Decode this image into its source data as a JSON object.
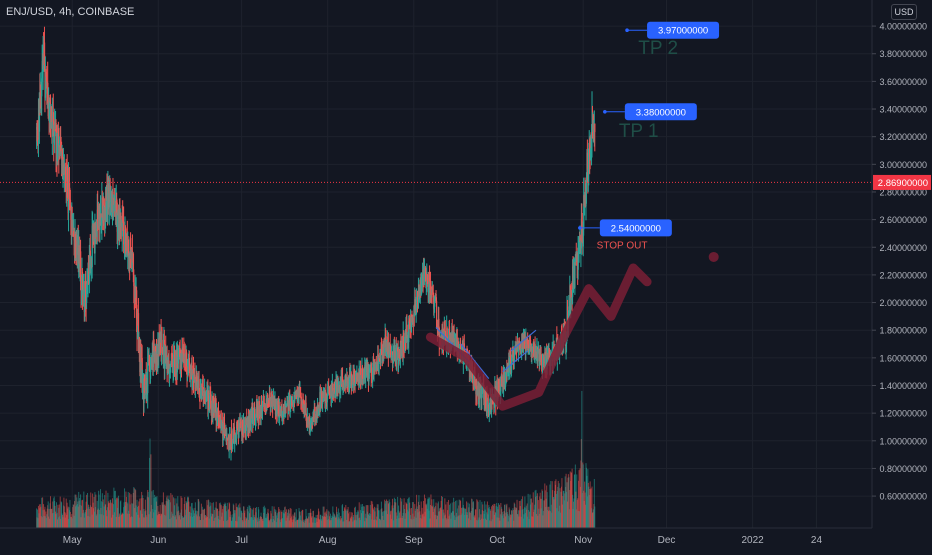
{
  "header": {
    "symbol_line": "ENJ/USD, 4h, COINBASE",
    "currency": "USD"
  },
  "chart_data": {
    "type": "candlestick",
    "title": "ENJ/USD, 4h, COINBASE",
    "ylim": [
      0.48,
      4.1
    ],
    "y_ticks": [
      "4.00000000",
      "3.80000000",
      "3.60000000",
      "3.40000000",
      "3.20000000",
      "3.00000000",
      "2.80000000",
      "2.60000000",
      "2.40000000",
      "2.20000000",
      "2.00000000",
      "1.80000000",
      "1.60000000",
      "1.40000000",
      "1.20000000",
      "1.00000000",
      "0.80000000",
      "0.60000000"
    ],
    "y_tick_values": [
      4.0,
      3.8,
      3.6,
      3.4,
      3.2,
      3.0,
      2.8,
      2.6,
      2.4,
      2.2,
      2.0,
      1.8,
      1.6,
      1.4,
      1.2,
      1.0,
      0.8,
      0.6
    ],
    "x_labels": [
      "May",
      "Jun",
      "Jul",
      "Aug",
      "Sep",
      "Oct",
      "Nov",
      "Dec",
      "2022",
      "24"
    ],
    "x_label_dates": [
      "2021-05-01",
      "2021-06-01",
      "2021-07-01",
      "2021-08-01",
      "2021-09-01",
      "2021-10-01",
      "2021-11-01",
      "2021-12-01",
      "2022-01-01",
      "2022-01-24"
    ],
    "x_range": [
      "2021-04-05",
      "2022-02-13"
    ],
    "last_price": {
      "label": "2.86900000",
      "value": 2.869
    },
    "price_path": [
      [
        "2021-04-18",
        3.25
      ],
      [
        "2021-04-20",
        3.8
      ],
      [
        "2021-04-22",
        3.4
      ],
      [
        "2021-04-27",
        3.0
      ],
      [
        "2021-05-01",
        2.5
      ],
      [
        "2021-05-05",
        2.05
      ],
      [
        "2021-05-09",
        2.6
      ],
      [
        "2021-05-14",
        2.78
      ],
      [
        "2021-05-18",
        2.55
      ],
      [
        "2021-05-22",
        2.3
      ],
      [
        "2021-05-26",
        1.35
      ],
      [
        "2021-05-29",
        1.55
      ],
      [
        "2021-06-01",
        1.7
      ],
      [
        "2021-06-04",
        1.55
      ],
      [
        "2021-06-09",
        1.6
      ],
      [
        "2021-06-14",
        1.4
      ],
      [
        "2021-06-20",
        1.25
      ],
      [
        "2021-06-26",
        1.0
      ],
      [
        "2021-07-01",
        1.1
      ],
      [
        "2021-07-05",
        1.2
      ],
      [
        "2021-07-10",
        1.3
      ],
      [
        "2021-07-15",
        1.2
      ],
      [
        "2021-07-21",
        1.35
      ],
      [
        "2021-07-25",
        1.1
      ],
      [
        "2021-07-29",
        1.3
      ],
      [
        "2021-08-04",
        1.4
      ],
      [
        "2021-08-10",
        1.45
      ],
      [
        "2021-08-16",
        1.5
      ],
      [
        "2021-08-21",
        1.7
      ],
      [
        "2021-08-26",
        1.6
      ],
      [
        "2021-08-31",
        1.9
      ],
      [
        "2021-09-04",
        2.2
      ],
      [
        "2021-09-07",
        2.1
      ],
      [
        "2021-09-10",
        1.75
      ],
      [
        "2021-09-14",
        1.75
      ],
      [
        "2021-09-19",
        1.6
      ],
      [
        "2021-09-23",
        1.4
      ],
      [
        "2021-09-28",
        1.25
      ],
      [
        "2021-10-03",
        1.45
      ],
      [
        "2021-10-07",
        1.65
      ],
      [
        "2021-10-12",
        1.7
      ],
      [
        "2021-10-17",
        1.55
      ],
      [
        "2021-10-21",
        1.65
      ],
      [
        "2021-10-25",
        1.75
      ],
      [
        "2021-10-28",
        2.2
      ],
      [
        "2021-10-31",
        2.5
      ],
      [
        "2021-11-02",
        3.0
      ],
      [
        "2021-11-04",
        3.3
      ],
      [
        "2021-11-05",
        3.35
      ]
    ],
    "price_ranges": [
      [
        "2021-04-22",
        0.82
      ],
      [
        "2021-05-20",
        0.68
      ],
      [
        "2021-06-20",
        0.45
      ],
      [
        "2021-07-20",
        0.35
      ],
      [
        "2021-08-25",
        0.45
      ],
      [
        "2021-09-10",
        0.5
      ],
      [
        "2021-10-15",
        0.4
      ],
      [
        "2021-10-26",
        0.55
      ],
      [
        "2021-11-04",
        0.85
      ]
    ],
    "volume_profile": [
      [
        "2021-04-20",
        0.08
      ],
      [
        "2021-05-20",
        0.11
      ],
      [
        "2021-06-20",
        0.07
      ],
      [
        "2021-07-25",
        0.05
      ],
      [
        "2021-09-07",
        0.09
      ],
      [
        "2021-10-05",
        0.06
      ],
      [
        "2021-10-31",
        0.17
      ],
      [
        "2021-11-05",
        0.13
      ]
    ],
    "volume_spikes": [
      [
        "2021-10-31",
        0.42
      ],
      [
        "2021-11-02",
        0.34
      ],
      [
        "2021-05-29",
        0.28
      ]
    ],
    "annotations": [
      {
        "type": "price_label",
        "text": "3.97000000",
        "value": 3.97,
        "date": "2021-11-24"
      },
      {
        "type": "price_label",
        "text": "3.38000000",
        "value": 3.38,
        "date": "2021-11-16"
      },
      {
        "type": "price_label",
        "text": "2.54000000",
        "value": 2.54,
        "date": "2021-11-07"
      },
      {
        "type": "text",
        "text": "TP 2",
        "value": 3.85,
        "date": "2021-11-28"
      },
      {
        "type": "text",
        "text": "TP 1",
        "value": 3.25,
        "date": "2021-11-21"
      },
      {
        "type": "text",
        "text": "STOP OUT",
        "value": 2.42,
        "date": "2021-11-15"
      }
    ],
    "trendlines": [
      [
        [
          "2021-09-09",
          1.82
        ],
        [
          "2021-09-21",
          1.57
        ]
      ],
      [
        [
          "2021-09-18",
          1.7
        ],
        [
          "2021-09-28",
          1.45
        ]
      ],
      [
        [
          "2021-10-06",
          1.65
        ],
        [
          "2021-10-15",
          1.8
        ]
      ],
      [
        [
          "2021-10-03",
          1.5
        ],
        [
          "2021-10-12",
          1.65
        ]
      ]
    ],
    "marker_path": [
      [
        "2021-09-07",
        1.75
      ],
      [
        "2021-09-20",
        1.6
      ],
      [
        "2021-10-03",
        1.25
      ],
      [
        "2021-10-16",
        1.35
      ],
      [
        "2021-10-25",
        1.75
      ],
      [
        "2021-11-03",
        2.1
      ],
      [
        "2021-11-11",
        1.9
      ],
      [
        "2021-11-19",
        2.25
      ],
      [
        "2021-11-24",
        2.15
      ]
    ],
    "marker_dot": [
      "2021-12-18",
      2.33
    ],
    "colors": {
      "up": "#26a69a",
      "down": "#ef5350",
      "label": "#2962ff",
      "tp": "#1f4e47",
      "stop": "#ef5350",
      "marker": "#7a1f35",
      "price_line": "#f23645",
      "trend": "#3f6bd8"
    }
  }
}
